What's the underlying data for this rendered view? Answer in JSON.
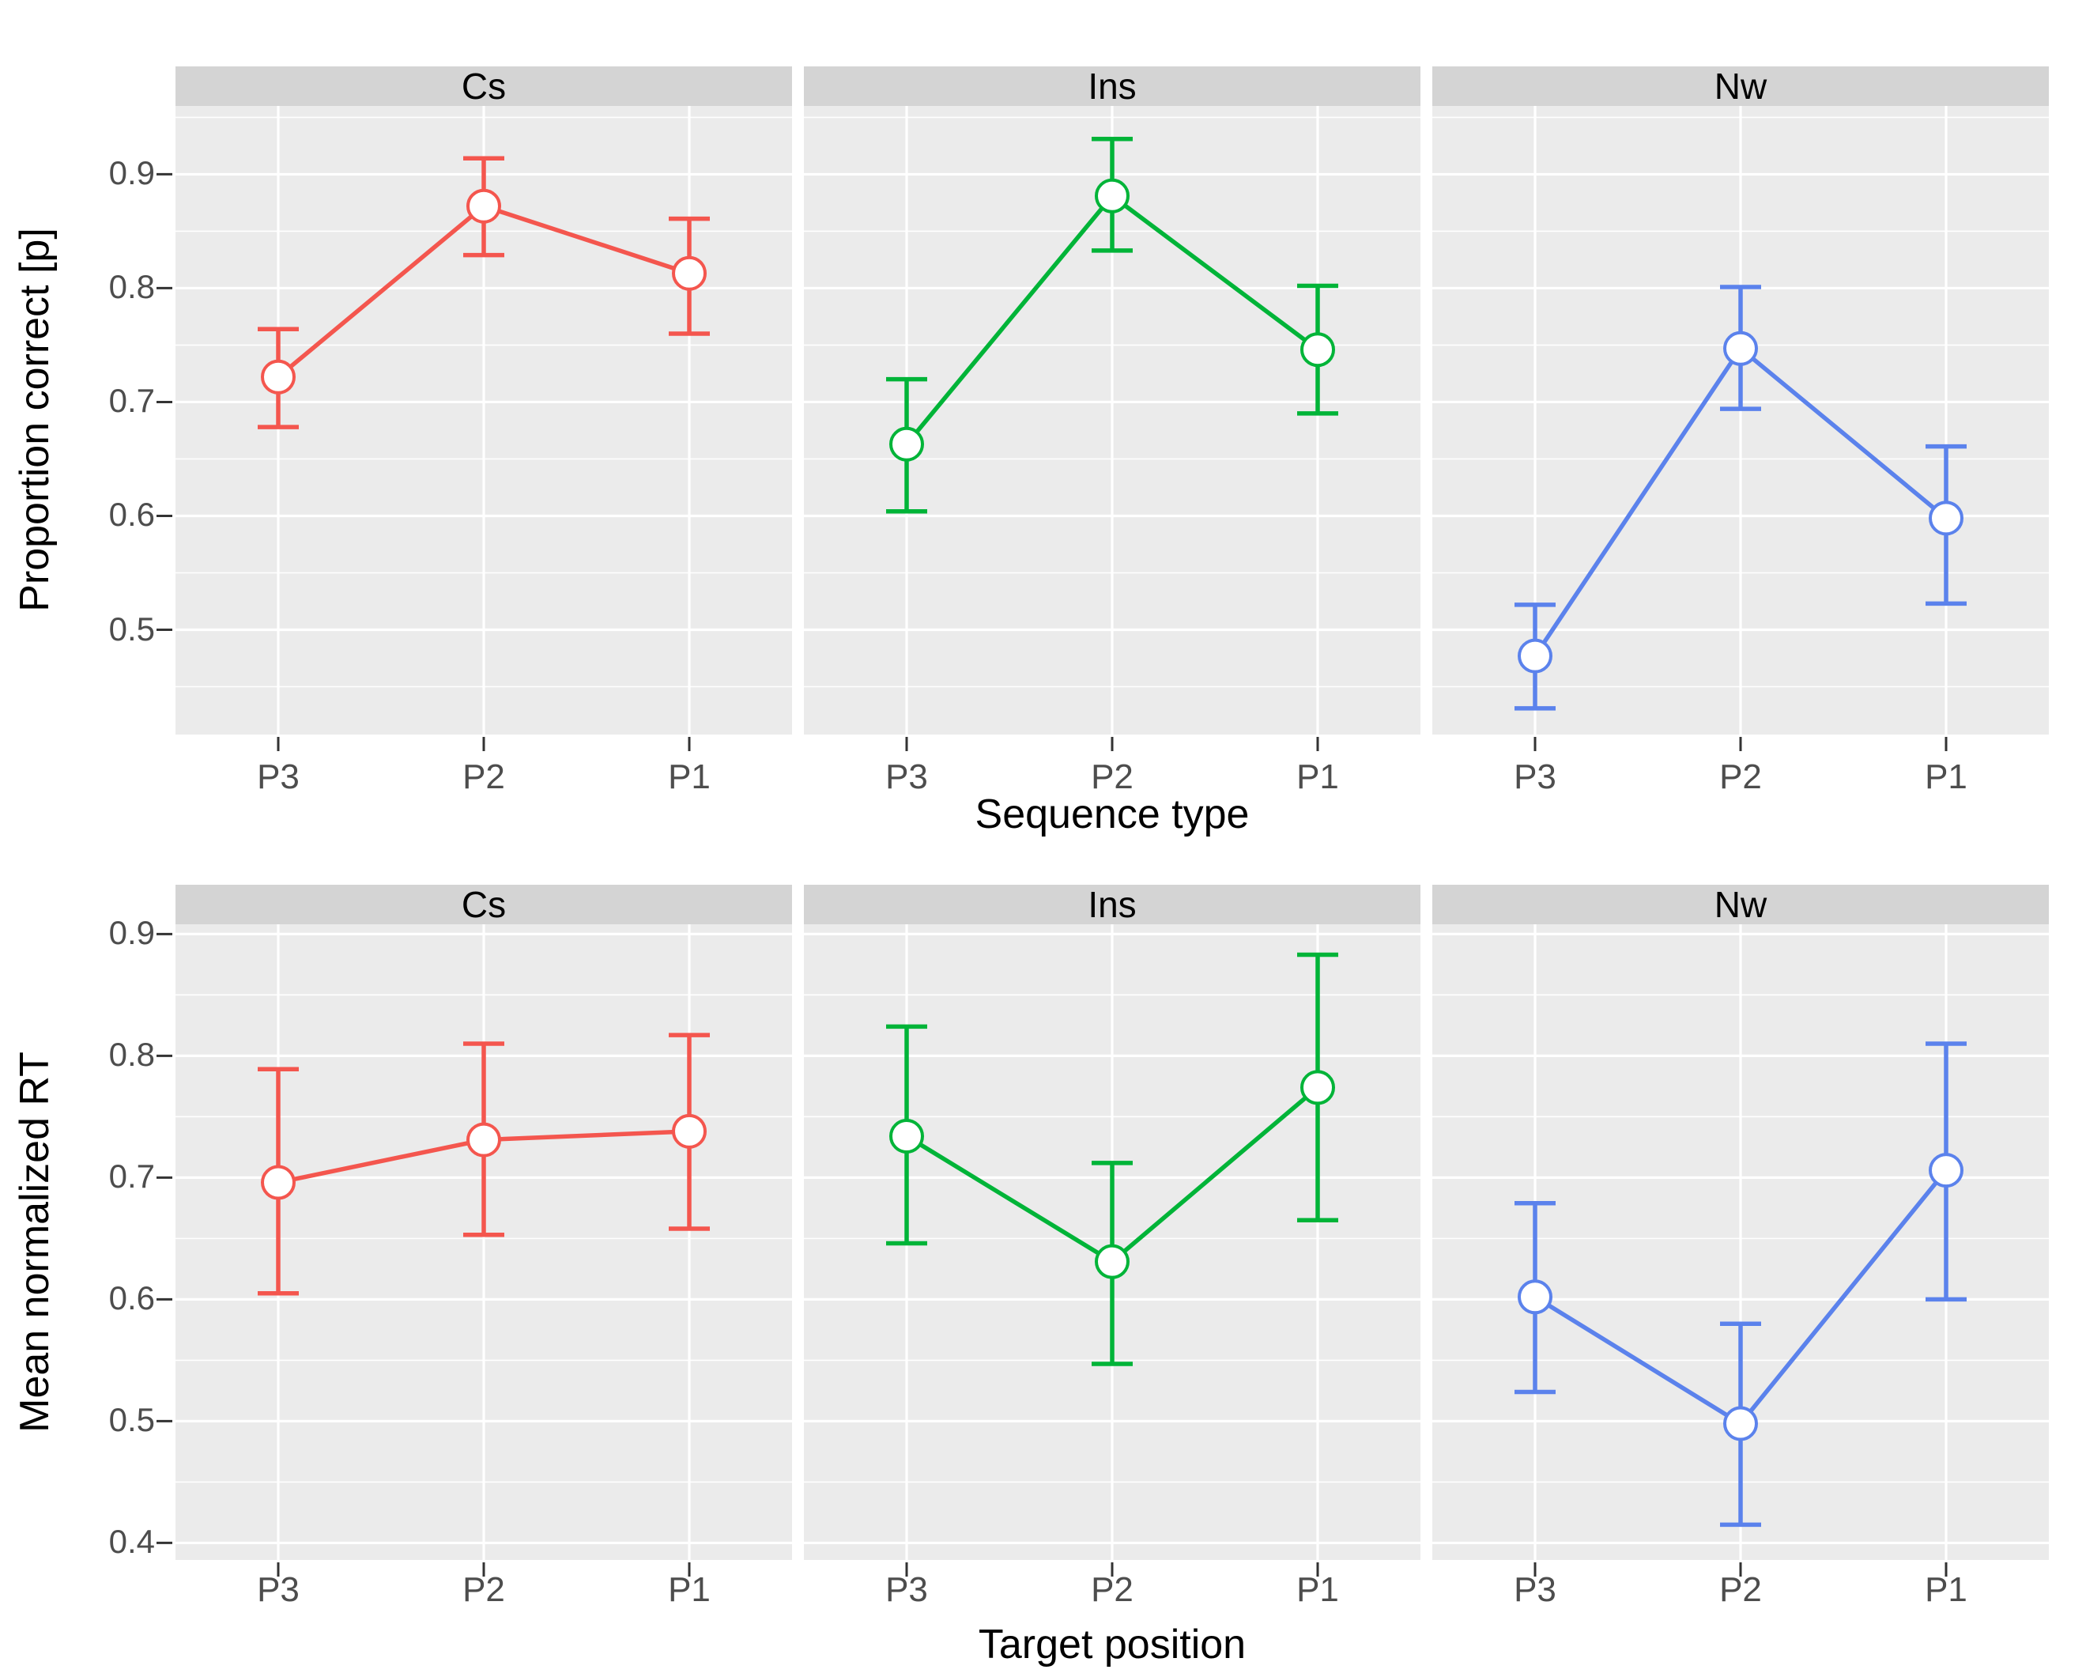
{
  "figure": {
    "rows": 2,
    "cols": 3,
    "facet_labels": [
      "Cs",
      "Ins",
      "Nw"
    ],
    "x_categories": [
      "P3",
      "P2",
      "P1"
    ]
  },
  "chart_data": [
    {
      "type": "line",
      "title": "",
      "xlabel": "Sequence type",
      "ylabel": "Proportion correct [p]",
      "categories": [
        "P3",
        "P2",
        "P1"
      ],
      "yticks": [
        0.5,
        0.6,
        0.7,
        0.8,
        0.9
      ],
      "yminor": [
        0.45,
        0.55,
        0.65,
        0.75,
        0.85,
        0.95
      ],
      "ylim": [
        0.408,
        0.96
      ],
      "grid": "major+minor horizontal white, vertical major at categories",
      "legend": "none",
      "facets": [
        {
          "label": "Cs",
          "color": "#F4564E",
          "values": [
            0.722,
            0.872,
            0.813
          ],
          "ci_lower": [
            0.678,
            0.829,
            0.76
          ],
          "ci_upper": [
            0.764,
            0.914,
            0.861
          ]
        },
        {
          "label": "Ins",
          "color": "#00B438",
          "values": [
            0.663,
            0.881,
            0.746
          ],
          "ci_lower": [
            0.604,
            0.833,
            0.69
          ],
          "ci_upper": [
            0.72,
            0.931,
            0.802
          ]
        },
        {
          "label": "Nw",
          "color": "#5B82EC",
          "values": [
            0.477,
            0.747,
            0.598
          ],
          "ci_lower": [
            0.431,
            0.694,
            0.523
          ],
          "ci_upper": [
            0.522,
            0.801,
            0.661
          ]
        }
      ]
    },
    {
      "type": "line",
      "title": "",
      "xlabel": "Target position",
      "ylabel": "Mean normalized RT",
      "categories": [
        "P3",
        "P2",
        "P1"
      ],
      "yticks": [
        0.4,
        0.5,
        0.6,
        0.7,
        0.8,
        0.9
      ],
      "yminor": [
        0.45,
        0.55,
        0.65,
        0.75,
        0.85
      ],
      "ylim": [
        0.386,
        0.908
      ],
      "grid": "major+minor horizontal white, vertical major at categories",
      "legend": "none",
      "facets": [
        {
          "label": "Cs",
          "color": "#F4564E",
          "values": [
            0.696,
            0.731,
            0.738
          ],
          "ci_lower": [
            0.605,
            0.653,
            0.658
          ],
          "ci_upper": [
            0.789,
            0.81,
            0.817
          ]
        },
        {
          "label": "Ins",
          "color": "#00B438",
          "values": [
            0.734,
            0.631,
            0.774
          ],
          "ci_lower": [
            0.646,
            0.547,
            0.665
          ],
          "ci_upper": [
            0.824,
            0.712,
            0.883
          ]
        },
        {
          "label": "Nw",
          "color": "#5B82EC",
          "values": [
            0.602,
            0.498,
            0.706
          ],
          "ci_lower": [
            0.524,
            0.415,
            0.6
          ],
          "ci_upper": [
            0.679,
            0.58,
            0.81
          ]
        }
      ]
    }
  ],
  "style_colors": {
    "series_cs": "#F4564E",
    "series_ins": "#00B438",
    "series_nw": "#5B82EC",
    "panel_background": "#EBEBEB",
    "strip_background": "#D4D4D4",
    "gridline": "#FFFFFF",
    "axis_text": "#4D4D4D",
    "title_text": "#000000",
    "point_fill": "#FFFFFF"
  }
}
